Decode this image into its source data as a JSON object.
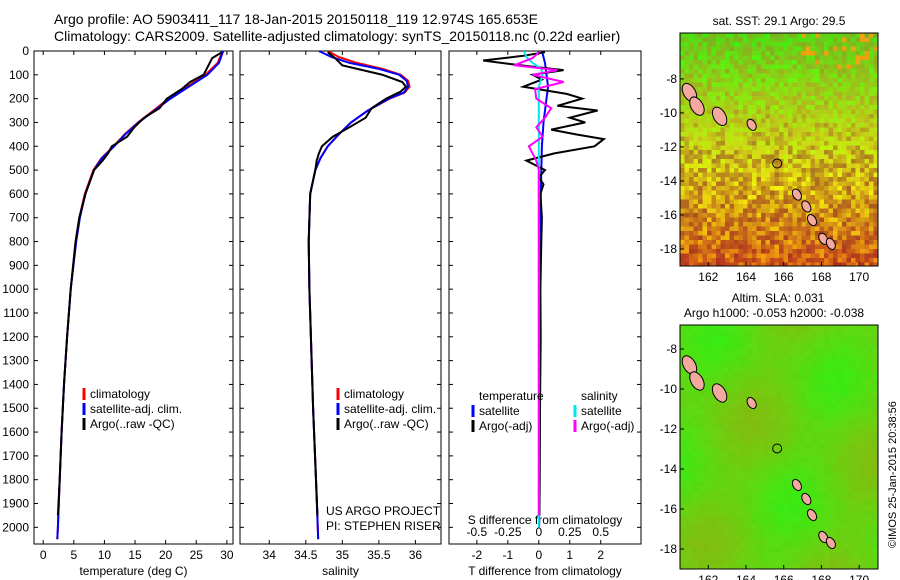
{
  "header": {
    "line1": "Argo profile: AO 5903411_117 18-Jan-2015 20150118_119 12.974S 165.653E",
    "line2": "Climatology: CARS2009. Satellite-adjusted climatology: synTS_20150118.nc (0.22d earlier)"
  },
  "colors": {
    "climatology": "#ff0000",
    "satellite": "#0000ff",
    "argo": "#000000",
    "sal_satellite": "#00e5ee",
    "sal_argo": "#ff00ff"
  },
  "chart_data": [
    {
      "type": "line",
      "name": "temperature-profile",
      "xlabel": "temperature (deg C)",
      "xlim": [
        -1.5,
        31
      ],
      "ylim": [
        0,
        2070
      ],
      "xticks": [
        "0",
        "5",
        "10",
        "15",
        "20",
        "25",
        "30"
      ],
      "yticks": [
        "0",
        "100",
        "200",
        "300",
        "400",
        "500",
        "600",
        "700",
        "800",
        "900",
        "1000",
        "1100",
        "1200",
        "1300",
        "1400",
        "1500",
        "1600",
        "1700",
        "1800",
        "1900",
        "2000"
      ],
      "legend": [
        "climatology",
        "satellite-adj. clim.",
        "Argo(..raw -QC)"
      ],
      "series": [
        {
          "name": "climatology",
          "depth": [
            0,
            50,
            100,
            150,
            200,
            250,
            300,
            350,
            400,
            450,
            500,
            600,
            700,
            800,
            1000,
            1200,
            1400,
            1600,
            1800,
            2000,
            2050
          ],
          "values": [
            29.3,
            28.5,
            26.5,
            23.5,
            20.5,
            18.0,
            15.5,
            13.3,
            11.5,
            9.5,
            8.2,
            6.8,
            5.9,
            5.3,
            4.5,
            3.9,
            3.4,
            3.0,
            2.7,
            2.4,
            2.3
          ]
        },
        {
          "name": "satellite-adj. clim.",
          "depth": [
            0,
            50,
            100,
            150,
            200,
            250,
            300,
            350,
            400,
            450,
            500,
            600,
            700,
            800,
            1000,
            1200,
            1400,
            1600,
            1800,
            2000,
            2050
          ],
          "values": [
            29.4,
            28.7,
            26.8,
            23.8,
            20.8,
            18.2,
            15.6,
            13.4,
            11.6,
            9.6,
            8.3,
            6.9,
            6.0,
            5.4,
            4.5,
            3.9,
            3.4,
            3.0,
            2.7,
            2.4,
            2.3
          ]
        },
        {
          "name": "Argo(..raw -QC)",
          "depth": [
            5,
            30,
            60,
            100,
            130,
            160,
            200,
            240,
            280,
            320,
            360,
            400,
            430,
            460,
            500,
            600,
            700,
            800,
            1000,
            1200,
            1400,
            1600,
            1800,
            1950
          ],
          "values": [
            29.2,
            27.6,
            27.0,
            26.2,
            24.0,
            22.6,
            20.2,
            19.0,
            16.5,
            14.9,
            13.7,
            11.2,
            10.6,
            9.7,
            8.3,
            6.9,
            5.9,
            5.3,
            4.5,
            3.9,
            3.4,
            3.0,
            2.7,
            2.4
          ]
        }
      ]
    },
    {
      "type": "line",
      "name": "salinity-profile",
      "xlabel": "salinity",
      "xlim": [
        33.6,
        36.35
      ],
      "ylim": [
        0,
        2070
      ],
      "xticks": [
        "34",
        "34.5",
        "35",
        "35.5",
        "36"
      ],
      "legend": [
        "climatology",
        "satellite-adj. clim.",
        "Argo(..raw -QC)"
      ],
      "annotation": [
        "US ARGO PROJECT",
        "PI: STEPHEN RISER"
      ],
      "series": [
        {
          "name": "climatology",
          "depth": [
            0,
            25,
            50,
            75,
            100,
            125,
            150,
            175,
            200,
            250,
            300,
            350,
            400,
            450,
            500,
            600,
            800,
            1000,
            1200,
            1500,
            1800,
            2050
          ],
          "values": [
            34.8,
            34.95,
            35.2,
            35.55,
            35.8,
            35.9,
            35.92,
            35.85,
            35.65,
            35.35,
            35.12,
            34.95,
            34.8,
            34.7,
            34.63,
            34.56,
            34.54,
            34.55,
            34.57,
            34.6,
            34.64,
            34.67
          ]
        },
        {
          "name": "satellite-adj. clim.",
          "depth": [
            0,
            25,
            50,
            75,
            100,
            125,
            150,
            175,
            200,
            250,
            300,
            350,
            400,
            450,
            500,
            600,
            800,
            1000,
            1200,
            1500,
            1800,
            2050
          ],
          "values": [
            34.68,
            34.85,
            35.1,
            35.5,
            35.78,
            35.88,
            35.9,
            35.84,
            35.64,
            35.35,
            35.12,
            34.95,
            34.8,
            34.7,
            34.63,
            34.56,
            34.54,
            34.55,
            34.57,
            34.6,
            34.64,
            34.67
          ]
        },
        {
          "name": "Argo(..raw -QC)",
          "depth": [
            5,
            30,
            60,
            100,
            130,
            150,
            170,
            200,
            240,
            280,
            320,
            360,
            400,
            430,
            460,
            500,
            600,
            800,
            1000,
            1200,
            1500,
            1800,
            1950
          ],
          "values": [
            34.8,
            34.9,
            35.0,
            35.55,
            35.82,
            35.87,
            35.8,
            35.6,
            35.4,
            35.32,
            35.1,
            34.87,
            34.72,
            34.68,
            34.65,
            34.63,
            34.56,
            34.54,
            34.55,
            34.57,
            34.6,
            34.64,
            34.66
          ]
        }
      ]
    },
    {
      "type": "line",
      "name": "difference-profile",
      "xlabel": "T difference from climatology",
      "xlabel_top": "S difference from climatology",
      "xlim": [
        -2.9,
        3.3
      ],
      "ylim": [
        0,
        2070
      ],
      "xticks": [
        "-2",
        "-1",
        "0",
        "1",
        "2"
      ],
      "xticks_top": [
        "-0.5",
        "-0.25",
        "0",
        "0.25",
        "0.5"
      ],
      "legend_left": {
        "title": "temperature",
        "items": [
          "satellite",
          "Argo(-adj)"
        ]
      },
      "legend_right": {
        "title": "salinity",
        "items": [
          "satellite",
          "Argo(-adj)"
        ]
      },
      "series": [
        {
          "name": "temperature satellite",
          "depth": [
            0,
            50,
            100,
            150,
            200,
            300,
            400,
            500,
            700,
            1000,
            1500,
            2000
          ],
          "values": [
            0.1,
            0.2,
            0.25,
            0.3,
            0.25,
            0.15,
            0.1,
            0.08,
            0.05,
            0.03,
            0.02,
            0.01
          ]
        },
        {
          "name": "temperature Argo(-adj)",
          "depth": [
            5,
            20,
            40,
            60,
            80,
            100,
            120,
            150,
            180,
            200,
            230,
            250,
            280,
            300,
            330,
            350,
            370,
            400,
            430,
            460,
            500,
            530,
            560,
            600,
            700,
            800,
            1000,
            1200,
            1500,
            1800,
            1950
          ],
          "values": [
            0.2,
            -0.5,
            -1.8,
            -0.6,
            0.8,
            -0.2,
            0.1,
            -0.5,
            0.9,
            1.4,
            0.6,
            1.9,
            1.0,
            1.5,
            0.4,
            1.2,
            2.1,
            1.8,
            0.5,
            -0.4,
            0.2,
            0.0,
            0.15,
            0.05,
            0.1,
            0.08,
            0.05,
            0.06,
            0.04,
            0.03,
            0.02
          ]
        },
        {
          "name": "salinity satellite",
          "depth": [
            0,
            25,
            50,
            75,
            100,
            150,
            200,
            300,
            500,
            1000,
            2000
          ],
          "values": [
            -0.12,
            -0.1,
            -0.05,
            0.02,
            0.03,
            0.0,
            0.0,
            0.0,
            0.0,
            0.0,
            0.0
          ]
        },
        {
          "name": "salinity Argo(-adj)",
          "depth": [
            5,
            30,
            60,
            80,
            100,
            130,
            160,
            200,
            240,
            280,
            320,
            360,
            400,
            430,
            460,
            500,
            600,
            800,
            1000,
            1500,
            1950
          ],
          "values": [
            0.0,
            -0.05,
            -0.2,
            0.15,
            -0.05,
            0.2,
            -0.03,
            -0.02,
            0.1,
            0.05,
            -0.02,
            0.03,
            -0.08,
            -0.05,
            -0.02,
            0.0,
            0.0,
            0.0,
            0.0,
            0.0,
            0.0
          ]
        }
      ]
    },
    {
      "type": "heatmap",
      "name": "sst-map",
      "title": "sat. SST: 29.1  Argo: 29.5",
      "xlim": [
        160.5,
        171
      ],
      "ylim": [
        -19,
        -5.3
      ],
      "xticks": [
        "162",
        "164",
        "166",
        "168",
        "170"
      ],
      "yticks": [
        "-8",
        "-10",
        "-12",
        "-14",
        "-16",
        "-18"
      ],
      "marker": {
        "lon": 165.653,
        "lat": -12.974
      }
    },
    {
      "type": "heatmap",
      "name": "sla-map",
      "title_line1": "Altim. SLA: 0.031",
      "title_line2": "Argo h1000: -0.053 h2000: -0.038",
      "xlim": [
        160.5,
        171
      ],
      "ylim": [
        -19,
        -6.8
      ],
      "xticks": [
        "162",
        "164",
        "166",
        "168",
        "170"
      ],
      "yticks": [
        "-8",
        "-10",
        "-12",
        "-14",
        "-16",
        "-18"
      ],
      "marker": {
        "lon": 165.653,
        "lat": -12.974
      }
    }
  ],
  "footer": {
    "credit": "©IMOS 25-Jan-2015 20:38:56"
  }
}
